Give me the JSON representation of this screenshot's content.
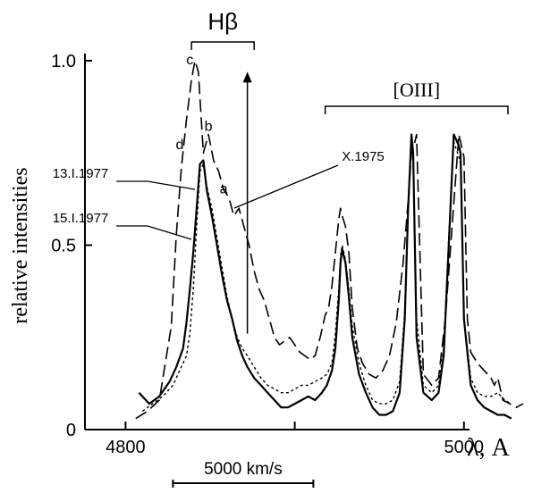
{
  "chart_data": {
    "type": "line",
    "xlabel": "λ, A",
    "ylabel": "relative intensities",
    "xlim": [
      4776,
      5035
    ],
    "ylim": [
      0,
      1.0
    ],
    "x_ticks": [
      {
        "value": 4800,
        "label": "4800"
      },
      {
        "value": 4900,
        "label": ""
      },
      {
        "value": 5000,
        "label": "5000"
      }
    ],
    "y_ticks": [
      {
        "value": 0,
        "label": "0"
      },
      {
        "value": 0.5,
        "label": "0.5"
      },
      {
        "value": 1.0,
        "label": "1.0"
      }
    ],
    "grid": false,
    "scale_bar": {
      "label": "5000 km/s",
      "x_start": 4828,
      "x_end": 4911
    },
    "lines": {
      "hbeta": {
        "label": "Hβ",
        "x_start": 4839,
        "x_end": 4876
      },
      "oiii": {
        "label": "[OIII]",
        "x_start": 4918,
        "x_end": 5026
      }
    },
    "arrow": {
      "x": 4872,
      "y_from": 0.26,
      "y_to": 0.97
    },
    "point_labels": [
      {
        "text": "c",
        "x": 4838,
        "y": 0.99
      },
      {
        "text": "b",
        "x": 4849,
        "y": 0.81
      },
      {
        "text": "d",
        "x": 4832,
        "y": 0.76
      },
      {
        "text": "a",
        "x": 4858,
        "y": 0.64
      }
    ],
    "series": [
      {
        "name": "X.1975",
        "style": "long-dash",
        "annot_xy": [
          4872,
          0.71
        ],
        "x": [
          4806,
          4813,
          4820,
          4827,
          4830,
          4833,
          4836,
          4839,
          4841,
          4843,
          4846,
          4849,
          4852,
          4855,
          4858,
          4861,
          4864,
          4867,
          4870,
          4873,
          4876,
          4879,
          4882,
          4885,
          4888,
          4891,
          4894,
          4897,
          4900,
          4903,
          4906,
          4909,
          4912,
          4915,
          4918,
          4920,
          4922,
          4924,
          4926,
          4927,
          4928,
          4930,
          4932,
          4934,
          4937,
          4940,
          4944,
          4948,
          4952,
          4956,
          4960,
          4964,
          4967,
          4969,
          4971,
          4972,
          4976,
          4981,
          4985,
          4989,
          4993,
          4997,
          5000,
          5002,
          5004,
          5008,
          5012,
          5016,
          5018,
          5020,
          5023,
          5027,
          5031,
          5035
        ],
        "values": [
          0.03,
          0.05,
          0.08,
          0.28,
          0.53,
          0.71,
          0.84,
          0.95,
          1.0,
          0.97,
          0.75,
          0.8,
          0.73,
          0.7,
          0.65,
          0.63,
          0.58,
          0.6,
          0.55,
          0.5,
          0.43,
          0.38,
          0.35,
          0.3,
          0.25,
          0.23,
          0.24,
          0.25,
          0.23,
          0.21,
          0.2,
          0.19,
          0.2,
          0.25,
          0.31,
          0.33,
          0.39,
          0.48,
          0.57,
          0.6,
          0.58,
          0.55,
          0.48,
          0.33,
          0.22,
          0.18,
          0.15,
          0.14,
          0.16,
          0.2,
          0.29,
          0.45,
          0.62,
          0.75,
          0.78,
          0.8,
          0.15,
          0.12,
          0.14,
          0.3,
          0.55,
          0.8,
          0.74,
          0.3,
          0.21,
          0.18,
          0.16,
          0.14,
          0.12,
          0.14,
          0.08,
          0.07,
          0.06,
          0.07
        ]
      },
      {
        "name": "13.I.1977",
        "style": "solid",
        "annot_xy": [
          4817,
          0.72
        ],
        "x": [
          4808,
          4814,
          4820,
          4826,
          4830,
          4834,
          4836,
          4838,
          4840,
          4842,
          4844,
          4846,
          4848,
          4851,
          4854,
          4857,
          4860,
          4863,
          4866,
          4869,
          4872,
          4876,
          4880,
          4884,
          4888,
          4892,
          4896,
          4900,
          4904,
          4908,
          4912,
          4916,
          4919,
          4922,
          4924,
          4926,
          4927,
          4928,
          4930,
          4932,
          4934,
          4938,
          4942,
          4946,
          4950,
          4954,
          4958,
          4962,
          4965,
          4967,
          4969,
          4970,
          4972,
          4976,
          4981,
          4985,
          4988,
          4991,
          4994,
          4997,
          4998,
          5000,
          5004,
          5008,
          5012,
          5016,
          5020,
          5024,
          5028
        ],
        "values": [
          0.1,
          0.07,
          0.09,
          0.13,
          0.17,
          0.22,
          0.29,
          0.38,
          0.48,
          0.6,
          0.72,
          0.73,
          0.65,
          0.58,
          0.5,
          0.42,
          0.35,
          0.3,
          0.24,
          0.2,
          0.17,
          0.14,
          0.12,
          0.1,
          0.08,
          0.06,
          0.06,
          0.07,
          0.08,
          0.09,
          0.08,
          0.1,
          0.12,
          0.16,
          0.22,
          0.35,
          0.45,
          0.49,
          0.45,
          0.36,
          0.25,
          0.15,
          0.1,
          0.06,
          0.04,
          0.04,
          0.05,
          0.1,
          0.3,
          0.6,
          0.8,
          0.75,
          0.25,
          0.1,
          0.08,
          0.1,
          0.2,
          0.5,
          0.8,
          0.77,
          0.75,
          0.3,
          0.12,
          0.08,
          0.06,
          0.05,
          0.04,
          0.04,
          0.03
        ]
      },
      {
        "name": "15.I.1977",
        "style": "short-dash",
        "annot_xy": [
          4817,
          0.52
        ],
        "x": [
          4810,
          4816,
          4822,
          4828,
          4832,
          4836,
          4838,
          4840,
          4842,
          4844,
          4846,
          4848,
          4851,
          4854,
          4857,
          4860,
          4863,
          4866,
          4869,
          4872,
          4876,
          4880,
          4884,
          4888,
          4892,
          4896,
          4900,
          4904,
          4908,
          4912,
          4916,
          4919,
          4922,
          4924,
          4926,
          4927,
          4928,
          4930,
          4932,
          4934,
          4938,
          4942,
          4946,
          4950,
          4954,
          4958,
          4962,
          4965,
          4967,
          4969,
          4970,
          4972,
          4976,
          4981,
          4985,
          4988,
          4991,
          4994,
          4997,
          4998,
          5000,
          5004,
          5008,
          5012,
          5016,
          5020,
          5024,
          5028
        ],
        "values": [
          0.05,
          0.07,
          0.09,
          0.12,
          0.16,
          0.2,
          0.26,
          0.38,
          0.55,
          0.7,
          0.72,
          0.66,
          0.6,
          0.52,
          0.44,
          0.36,
          0.3,
          0.25,
          0.22,
          0.2,
          0.17,
          0.14,
          0.12,
          0.11,
          0.1,
          0.1,
          0.11,
          0.12,
          0.12,
          0.13,
          0.14,
          0.15,
          0.18,
          0.26,
          0.38,
          0.47,
          0.5,
          0.46,
          0.38,
          0.28,
          0.18,
          0.12,
          0.08,
          0.07,
          0.07,
          0.08,
          0.13,
          0.32,
          0.6,
          0.78,
          0.74,
          0.3,
          0.12,
          0.1,
          0.12,
          0.22,
          0.52,
          0.78,
          0.74,
          0.72,
          0.3,
          0.14,
          0.1,
          0.09,
          0.09,
          0.1,
          0.08,
          0.07
        ]
      }
    ]
  }
}
